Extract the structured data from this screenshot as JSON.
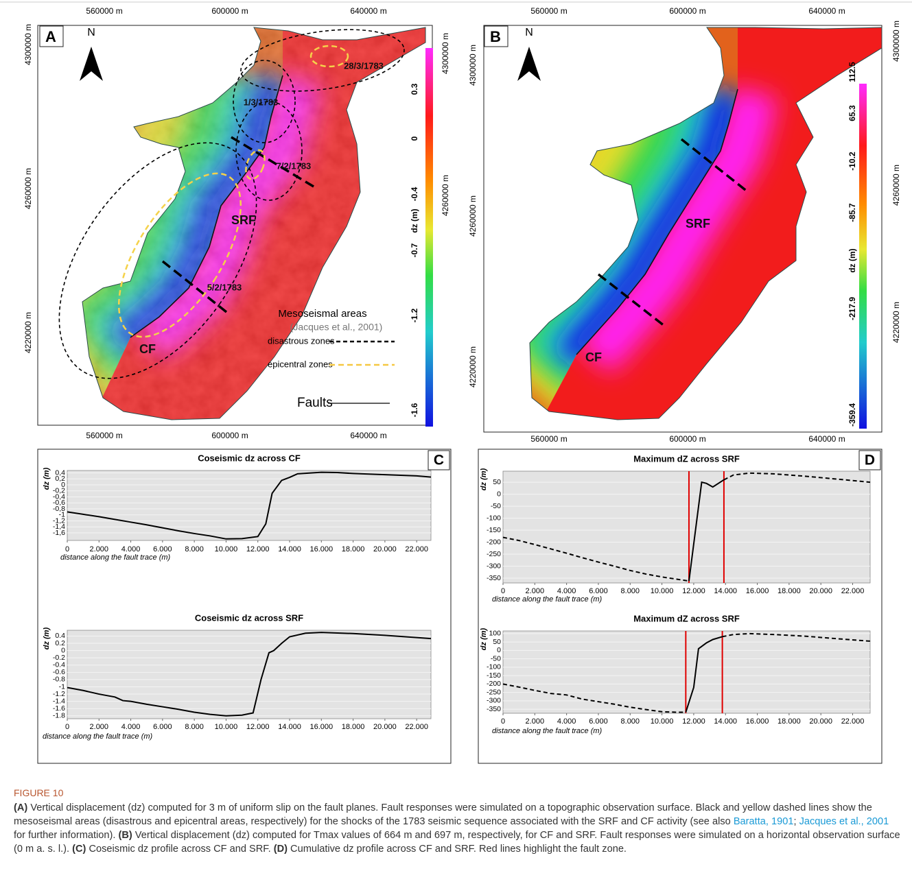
{
  "figure": {
    "maps": [
      {
        "panel": "A",
        "north": "N",
        "x_ticks_top": [
          "560000 m",
          "600000 m",
          "640000 m"
        ],
        "x_ticks_bottom": [
          "560000 m",
          "600000 m",
          "640000 m"
        ],
        "y_ticks_left": [
          "4300000 m",
          "4260000 m",
          "4220000 m"
        ],
        "y_ticks_right": [
          "4300000 m",
          "4260000 m"
        ],
        "colorbar_title": "dz (m)",
        "colorbar_ticks": [
          "0.3",
          "0",
          "-0.4",
          "-0.7",
          "-1.2",
          "-1.6"
        ],
        "fault_labels": [
          "SRF",
          "CF"
        ],
        "event_labels": [
          "28/3/1783",
          "1/3/1783",
          "7/2/1783",
          "5/2/1783"
        ],
        "legend": {
          "title": "Mesoseismal areas",
          "source": "(Jacques et al., 2001)",
          "items": [
            "disastrous zones",
            "epicentral zones",
            "Faults"
          ]
        }
      },
      {
        "panel": "B",
        "north": "N",
        "x_ticks_top": [
          "560000 m",
          "600000 m",
          "640000 m"
        ],
        "x_ticks_bottom": [
          "560000 m",
          "600000 m",
          "640000 m"
        ],
        "y_ticks_left": [
          "4300000 m",
          "4260000 m",
          "4220000 m"
        ],
        "y_ticks_right": [
          "4300000 m",
          "4260000 m",
          "4220000 m"
        ],
        "colorbar_title": "dz (m)",
        "colorbar_ticks": [
          "112.5",
          "65.3",
          "-10.2",
          "-85.7",
          "-217.9",
          "-359.4"
        ],
        "fault_labels": [
          "SRF",
          "CF"
        ]
      }
    ],
    "chart_panels": [
      "C",
      "D"
    ]
  },
  "chart_data": [
    {
      "type": "line",
      "title": "Coseismic dz across CF",
      "x_label": "distance along the fault trace (m)",
      "y_label": "dz (m)",
      "x": [
        0,
        1000,
        2000,
        3000,
        4000,
        5000,
        6000,
        7000,
        8000,
        9000,
        10000,
        11000,
        12000,
        12500,
        12900,
        13500,
        14000,
        14500,
        16000,
        17000,
        18000,
        20000,
        22000,
        22900
      ],
      "series": [
        {
          "color": "#000000",
          "dash": false,
          "values": [
            -0.9,
            -0.98,
            -1.06,
            -1.15,
            -1.24,
            -1.33,
            -1.43,
            -1.53,
            -1.62,
            -1.7,
            -1.8,
            -1.79,
            -1.72,
            -1.3,
            -0.28,
            0.15,
            0.25,
            0.37,
            0.42,
            0.41,
            0.38,
            0.34,
            0.3,
            0.26
          ]
        }
      ],
      "xlim": [
        0,
        22900
      ],
      "ylim": [
        -1.85,
        0.48
      ],
      "xticks": [
        0,
        {
          "value": 2000,
          "label": "2.000"
        },
        {
          "value": 4000,
          "label": "4.000"
        },
        {
          "value": 6000,
          "label": "6.000"
        },
        {
          "value": 8000,
          "label": "8.000"
        },
        {
          "value": 10000,
          "label": "10.000"
        },
        {
          "value": 12000,
          "label": "12.000"
        },
        {
          "value": 14000,
          "label": "14.000"
        },
        {
          "value": 16000,
          "label": "16.000"
        },
        {
          "value": 18000,
          "label": "18.000"
        },
        {
          "value": 20000,
          "label": "20.000"
        },
        {
          "value": 22000,
          "label": "22.000"
        }
      ],
      "yticks": [
        {
          "value": 0.4,
          "label": "0,4"
        },
        {
          "value": 0.2,
          "label": "0,2"
        },
        0,
        {
          "value": -0.2,
          "label": "-0,2"
        },
        {
          "value": -0.4,
          "label": "-0,4"
        },
        {
          "value": -0.6,
          "label": "-0,6"
        },
        {
          "value": -0.8,
          "label": "-0,8"
        },
        -1,
        {
          "value": -1.2,
          "label": "-1,2"
        },
        {
          "value": -1.4,
          "label": "-1,4"
        },
        {
          "value": -1.6,
          "label": "-1,6"
        }
      ],
      "grid": true
    },
    {
      "type": "line",
      "title": "Coseismic dz across SRF",
      "x_label": "distance along the fault trace (m)",
      "y_label": "dz (m)",
      "x": [
        0,
        1000,
        2000,
        3000,
        3500,
        4000,
        5000,
        6000,
        7000,
        8000,
        9000,
        10000,
        11000,
        11700,
        12200,
        12700,
        13000,
        13500,
        14000,
        15000,
        16000,
        18000,
        20000,
        22000,
        22900
      ],
      "series": [
        {
          "color": "#000000",
          "dash": false,
          "values": [
            -1.02,
            -1.1,
            -1.2,
            -1.28,
            -1.38,
            -1.4,
            -1.48,
            -1.55,
            -1.62,
            -1.7,
            -1.76,
            -1.8,
            -1.78,
            -1.72,
            -0.8,
            -0.06,
            0.0,
            0.2,
            0.38,
            0.48,
            0.5,
            0.47,
            0.42,
            0.36,
            0.33
          ]
        }
      ],
      "xlim": [
        0,
        22900
      ],
      "ylim": [
        -1.88,
        0.56
      ],
      "xticks": [
        0,
        {
          "value": 2000,
          "label": "2.000"
        },
        {
          "value": 4000,
          "label": "4.000"
        },
        {
          "value": 6000,
          "label": "6.000"
        },
        {
          "value": 8000,
          "label": "8.000"
        },
        {
          "value": 10000,
          "label": "10.000"
        },
        {
          "value": 12000,
          "label": "12.000"
        },
        {
          "value": 14000,
          "label": "14.000"
        },
        {
          "value": 16000,
          "label": "16.000"
        },
        {
          "value": 18000,
          "label": "18.000"
        },
        {
          "value": 20000,
          "label": "20.000"
        },
        {
          "value": 22000,
          "label": "22.000"
        }
      ],
      "yticks": [
        0.4,
        0.2,
        0,
        -0.2,
        -0.4,
        -0.6,
        -0.8,
        -1,
        -1.2,
        -1.4,
        -1.6,
        -1.8
      ],
      "grid": true
    },
    {
      "type": "line",
      "title": "Maximum dZ across SRF",
      "x_label": "distance along the fault trace (m)",
      "y_label": "dz (m)",
      "x": [
        0,
        1000,
        2000,
        3000,
        4000,
        5000,
        6000,
        7000,
        8000,
        9000,
        10000,
        11000,
        11700,
        12500,
        12800,
        13200,
        13900,
        14500,
        15500,
        17000,
        19000,
        21000,
        23100
      ],
      "series": [
        {
          "color": "#000000",
          "dash": true,
          "values": [
            -180,
            -193,
            -210,
            -228,
            -246,
            -265,
            -283,
            -300,
            -318,
            -333,
            -345,
            -355,
            -362,
            null,
            null,
            null,
            60,
            80,
            88,
            85,
            75,
            63,
            50
          ]
        },
        {
          "color": "#000000",
          "dash": false,
          "values": [
            null,
            null,
            null,
            null,
            null,
            null,
            null,
            null,
            null,
            null,
            null,
            null,
            -362,
            50,
            45,
            30,
            60,
            null,
            null,
            null,
            null,
            null,
            null
          ]
        }
      ],
      "vlines": [
        11700,
        13900
      ],
      "vline_color": "#e00000",
      "xlim": [
        0,
        23100
      ],
      "ylim": [
        -370,
        96
      ],
      "xticks": [
        0,
        {
          "value": 2000,
          "label": "2.000"
        },
        {
          "value": 4000,
          "label": "4.000"
        },
        {
          "value": 6000,
          "label": "6.000"
        },
        {
          "value": 8000,
          "label": "8.000"
        },
        {
          "value": 10000,
          "label": "10.000"
        },
        {
          "value": 12000,
          "label": "12.000"
        },
        {
          "value": 14000,
          "label": "14.000"
        },
        {
          "value": 16000,
          "label": "16.000"
        },
        {
          "value": 18000,
          "label": "18.000"
        },
        {
          "value": 20000,
          "label": "20.000"
        },
        {
          "value": 22000,
          "label": "22.000"
        }
      ],
      "yticks": [
        50,
        0,
        -50,
        -100,
        -150,
        -200,
        -250,
        -300,
        -350
      ],
      "grid": true
    },
    {
      "type": "line",
      "title": "Maximum dZ across SRF",
      "x_label": "distance along the fault trace (m)",
      "y_label": "dz (m)",
      "x": [
        0,
        1000,
        2000,
        3000,
        4000,
        5000,
        6000,
        7000,
        8000,
        9000,
        10000,
        11000,
        11500,
        12000,
        12300,
        12800,
        13200,
        13800,
        14500,
        15500,
        17000,
        19000,
        21000,
        23100
      ],
      "series": [
        {
          "color": "#000000",
          "dash": true,
          "values": [
            -200,
            -218,
            -238,
            -256,
            -265,
            -290,
            -305,
            -320,
            -338,
            -352,
            -365,
            -368,
            -368,
            null,
            null,
            null,
            null,
            82,
            95,
            100,
            95,
            85,
            70,
            55
          ]
        },
        {
          "color": "#000000",
          "dash": false,
          "values": [
            null,
            null,
            null,
            null,
            null,
            null,
            null,
            null,
            null,
            null,
            null,
            null,
            -368,
            -220,
            10,
            45,
            65,
            82,
            null,
            null,
            null,
            null,
            null,
            null
          ]
        }
      ],
      "vlines": [
        11500,
        13800
      ],
      "vline_color": "#e00000",
      "xlim": [
        0,
        23100
      ],
      "ylim": [
        -374,
        116
      ],
      "xticks": [
        0,
        {
          "value": 2000,
          "label": "2.000"
        },
        {
          "value": 4000,
          "label": "4.000"
        },
        {
          "value": 6000,
          "label": "6.000"
        },
        {
          "value": 8000,
          "label": "8.000"
        },
        {
          "value": 10000,
          "label": "10.000"
        },
        {
          "value": 12000,
          "label": "12.000"
        },
        {
          "value": 14000,
          "label": "14.000"
        },
        {
          "value": 16000,
          "label": "16.000"
        },
        {
          "value": 18000,
          "label": "18.000"
        },
        {
          "value": 20000,
          "label": "20.000"
        },
        {
          "value": 22000,
          "label": "22.000"
        }
      ],
      "yticks": [
        100,
        50,
        0,
        -50,
        -100,
        -150,
        -200,
        -250,
        -300,
        -350
      ],
      "grid": true
    }
  ],
  "caption": {
    "label": "FIGURE 10",
    "parts": [
      {
        "text": "(A)",
        "bold": true
      },
      {
        "text": " Vertical displacement (dz) computed for 3 m of uniform slip on the fault planes. Fault responses were simulated on a topographic observation surface. Black and yellow dashed lines show the mesoseismal areas (disastrous and epicentral areas, respectively) for the shocks of the 1783 seismic sequence associated with the SRF and CF activity (see also "
      },
      {
        "text": "Baratta, 1901",
        "link": true
      },
      {
        "text": "; "
      },
      {
        "text": "Jacques et al., 2001",
        "link": true
      },
      {
        "text": " for further information). "
      },
      {
        "text": "(B)",
        "bold": true
      },
      {
        "text": " Vertical displacement (dz) computed for Tmax values of 664 m and 697 m, respectively, for CF and SRF. Fault responses were simulated on a horizontal observation surface (0 m a. s. l.). "
      },
      {
        "text": "(C)",
        "bold": true
      },
      {
        "text": " Coseismic dz profile across CF and SRF. "
      },
      {
        "text": "(D)",
        "bold": true
      },
      {
        "text": " Cumulative dz profile across CF and SRF. Red lines highlight the fault zone."
      }
    ]
  }
}
